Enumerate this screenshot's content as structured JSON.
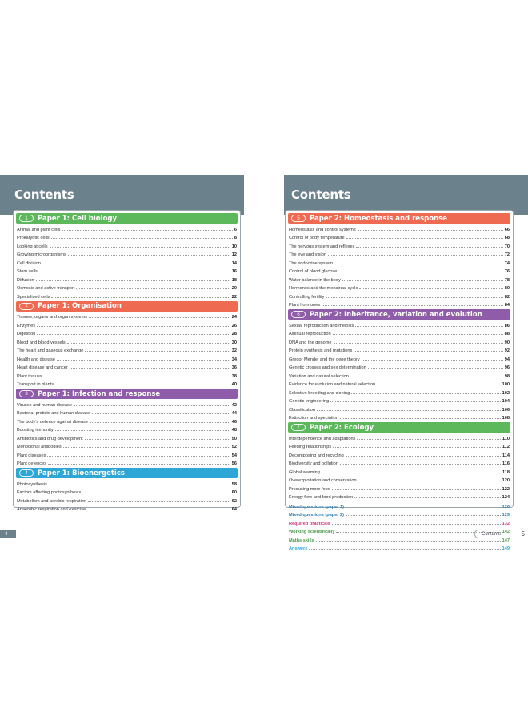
{
  "left_page": {
    "title": "Contents",
    "page_number": "4",
    "sections": [
      {
        "num": "1",
        "title": "Paper 1: Cell biology",
        "color": "#5db85c",
        "items": [
          {
            "label": "Animal and plant cells",
            "page": "6"
          },
          {
            "label": "Prokaryotic cells",
            "page": "8"
          },
          {
            "label": "Looking at cells",
            "page": "10"
          },
          {
            "label": "Growing microorganisms",
            "page": "12"
          },
          {
            "label": "Cell division",
            "page": "14"
          },
          {
            "label": "Stem cells",
            "page": "16"
          },
          {
            "label": "Diffusion",
            "page": "18"
          },
          {
            "label": "Osmosis and active transport",
            "page": "20"
          },
          {
            "label": "Specialised cells",
            "page": "22"
          }
        ]
      },
      {
        "num": "2",
        "title": "Paper 1: Organisation",
        "color": "#ee6b52",
        "items": [
          {
            "label": "Tissues, organs and organ systems",
            "page": "24"
          },
          {
            "label": "Enzymes",
            "page": "26"
          },
          {
            "label": "Digestion",
            "page": "28"
          },
          {
            "label": "Blood and blood vessels",
            "page": "30"
          },
          {
            "label": "The heart and gaseous exchange",
            "page": "32"
          },
          {
            "label": "Health and disease",
            "page": "34"
          },
          {
            "label": "Heart disease and cancer",
            "page": "36"
          },
          {
            "label": "Plant tissues",
            "page": "38"
          },
          {
            "label": "Transport in plants",
            "page": "40"
          }
        ]
      },
      {
        "num": "3",
        "title": "Paper 1: Infection and response",
        "color": "#8e5ca8",
        "items": [
          {
            "label": "Viruses and human disease",
            "page": "42"
          },
          {
            "label": "Bacteria, protists and human disease",
            "page": "44"
          },
          {
            "label": "The body's defence against disease",
            "page": "46"
          },
          {
            "label": "Boosting immunity",
            "page": "48"
          },
          {
            "label": "Antibiotics and drug development",
            "page": "50"
          },
          {
            "label": "Monoclonal antibodies",
            "page": "52"
          },
          {
            "label": "Plant diseases",
            "page": "54"
          },
          {
            "label": "Plant defences",
            "page": "56"
          }
        ]
      },
      {
        "num": "4",
        "title": "Paper 1: Bioenergetics",
        "color": "#2ea7d7",
        "items": [
          {
            "label": "Photosynthesis",
            "page": "58"
          },
          {
            "label": "Factors affecting photosynthesis",
            "page": "60"
          },
          {
            "label": "Metabolism and aerobic respiration",
            "page": "62"
          },
          {
            "label": "Anaerobic respiration and exercise",
            "page": "64"
          }
        ]
      }
    ]
  },
  "right_page": {
    "title": "Contents",
    "footer_label": "Contents",
    "page_number": "5",
    "sections": [
      {
        "num": "5",
        "title": "Paper 2: Homeostasis and response",
        "color": "#ee6b52",
        "items": [
          {
            "label": "Homeostasis and control systems",
            "page": "66"
          },
          {
            "label": "Control of body temperature",
            "page": "68"
          },
          {
            "label": "The nervous system and reflexes",
            "page": "70"
          },
          {
            "label": "The eye and vision",
            "page": "72"
          },
          {
            "label": "The endocrine system",
            "page": "74"
          },
          {
            "label": "Control of blood glucose",
            "page": "76"
          },
          {
            "label": "Water balance in the body",
            "page": "78"
          },
          {
            "label": "Hormones and the menstrual cycle",
            "page": "80"
          },
          {
            "label": "Controlling fertility",
            "page": "82"
          },
          {
            "label": "Plant hormones",
            "page": "84"
          }
        ]
      },
      {
        "num": "6",
        "title": "Paper 2: Inheritance, variation and evolution",
        "color": "#8e5ca8",
        "items": [
          {
            "label": "Sexual reproduction and meiosis",
            "page": "86"
          },
          {
            "label": "Asexual reproduction",
            "page": "88"
          },
          {
            "label": "DNA and the genome",
            "page": "90"
          },
          {
            "label": "Protein synthesis and mutations",
            "page": "92"
          },
          {
            "label": "Gregor Mendel and the gene theory",
            "page": "94"
          },
          {
            "label": "Genetic crosses and sex determination",
            "page": "96"
          },
          {
            "label": "Variation and natural selection",
            "page": "98"
          },
          {
            "label": "Evidence for evolution and natural selection",
            "page": "100"
          },
          {
            "label": "Selective breeding and cloning",
            "page": "102"
          },
          {
            "label": "Genetic engineering",
            "page": "104"
          },
          {
            "label": "Classification",
            "page": "106"
          },
          {
            "label": "Extinction and speciation",
            "page": "108"
          }
        ]
      },
      {
        "num": "7",
        "title": "Paper 2: Ecology",
        "color": "#5db85c",
        "items": [
          {
            "label": "Interdependence and adaptations",
            "page": "110"
          },
          {
            "label": "Feeding relationships",
            "page": "112"
          },
          {
            "label": "Decomposing and recycling",
            "page": "114"
          },
          {
            "label": "Biodiversity and pollution",
            "page": "116"
          },
          {
            "label": "Global warming",
            "page": "118"
          },
          {
            "label": "Overexploitation and conservation",
            "page": "120"
          },
          {
            "label": "Producing more food",
            "page": "122"
          },
          {
            "label": "Energy flow and food production",
            "page": "124"
          }
        ]
      }
    ],
    "extras": [
      {
        "label": "Mixed questions (paper 1)",
        "page": "126",
        "color": "#2b7fb8"
      },
      {
        "label": "Mixed questions (paper 2)",
        "page": "129",
        "color": "#2b7fb8"
      },
      {
        "label": "Required practicals",
        "page": "132",
        "color": "#d0367a"
      },
      {
        "label": "Working scientifically",
        "page": "142",
        "color": "#4a9a4a"
      },
      {
        "label": "Maths skills",
        "page": "147",
        "color": "#4a9a4a"
      },
      {
        "label": "Answers",
        "page": "149",
        "color": "#2ea7d7"
      }
    ]
  }
}
